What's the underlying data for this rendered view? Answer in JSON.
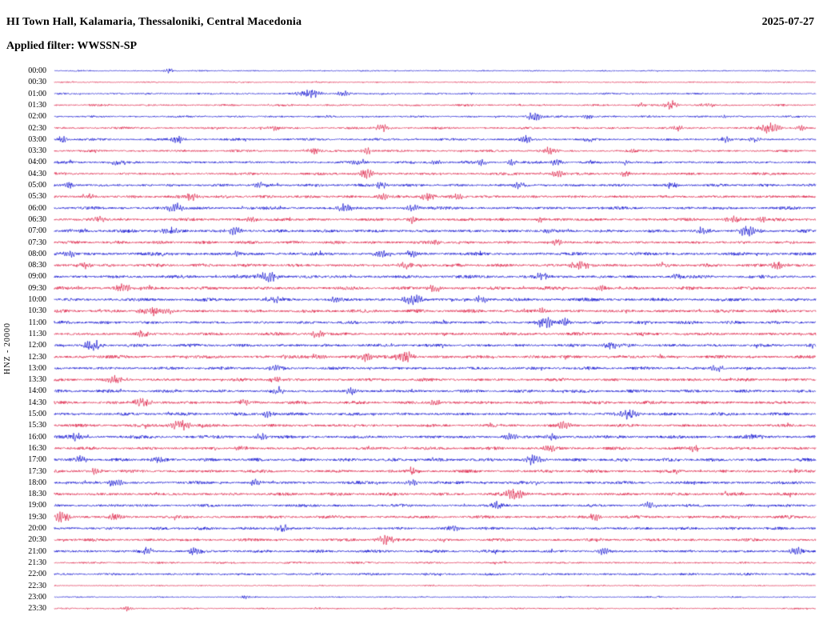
{
  "header": {
    "title": "HI Town Hall, Kalamaria, Thessaloniki, Central Macedonia",
    "date": "2025-07-27",
    "filter": "Applied filter: WWSSN-SP"
  },
  "axis": {
    "left_label": "HNZ - 20000"
  },
  "chart_data": {
    "type": "line",
    "subtype": "helicorder-seismogram",
    "minutes_per_row": 30,
    "rows_count": 48,
    "trace_colors": {
      "blue": "#0000CD",
      "red": "#DC143C"
    },
    "note_events_format": "e = [x_fraction_of_row, relative_amplitude, gaussian_width_fraction]",
    "rows": [
      {
        "t": "00:00",
        "c": "blue",
        "n": 0.6,
        "e": [
          [
            0.15,
            2,
            0.006
          ]
        ]
      },
      {
        "t": "00:30",
        "c": "red",
        "n": 0.6,
        "e": []
      },
      {
        "t": "01:00",
        "c": "blue",
        "n": 0.8,
        "e": [
          [
            0.335,
            3.5,
            0.015
          ],
          [
            0.38,
            2,
            0.01
          ],
          [
            0.55,
            1.5,
            0.005
          ]
        ]
      },
      {
        "t": "01:30",
        "c": "red",
        "n": 0.9,
        "e": [
          [
            0.77,
            1.5,
            0.006
          ],
          [
            0.81,
            4,
            0.008
          ],
          [
            0.86,
            1.5,
            0.01
          ]
        ]
      },
      {
        "t": "02:00",
        "c": "blue",
        "n": 0.9,
        "e": [
          [
            0.63,
            3.5,
            0.01
          ],
          [
            0.7,
            1.5,
            0.008
          ],
          [
            0.88,
            1.5,
            0.006
          ]
        ]
      },
      {
        "t": "02:30",
        "c": "red",
        "n": 1.0,
        "e": [
          [
            0.29,
            2,
            0.008
          ],
          [
            0.43,
            2.5,
            0.01
          ],
          [
            0.82,
            2,
            0.008
          ],
          [
            0.94,
            4.5,
            0.012
          ],
          [
            0.98,
            2,
            0.006
          ]
        ]
      },
      {
        "t": "03:00",
        "c": "blue",
        "n": 1.1,
        "e": [
          [
            0.01,
            2.5,
            0.006
          ],
          [
            0.16,
            3,
            0.01
          ],
          [
            0.62,
            2.5,
            0.008
          ],
          [
            0.7,
            2.5,
            0.006
          ],
          [
            0.88,
            2.5,
            0.008
          ],
          [
            0.92,
            2.5,
            0.006
          ]
        ]
      },
      {
        "t": "03:30",
        "c": "red",
        "n": 1.1,
        "e": [
          [
            0.34,
            2.5,
            0.01
          ],
          [
            0.41,
            2.5,
            0.008
          ],
          [
            0.65,
            2.5,
            0.01
          ],
          [
            0.76,
            1.5,
            0.006
          ]
        ]
      },
      {
        "t": "04:00",
        "c": "blue",
        "n": 1.2,
        "e": [
          [
            0.08,
            2,
            0.008
          ],
          [
            0.4,
            2.5,
            0.01
          ],
          [
            0.5,
            2,
            0.008
          ],
          [
            0.56,
            2.5,
            0.008
          ],
          [
            0.6,
            2.5,
            0.006
          ],
          [
            0.66,
            2.5,
            0.008
          ],
          [
            0.75,
            2,
            0.006
          ]
        ]
      },
      {
        "t": "04:30",
        "c": "red",
        "n": 1.2,
        "e": [
          [
            0.41,
            3.5,
            0.012
          ],
          [
            0.66,
            2.5,
            0.01
          ],
          [
            0.75,
            2,
            0.008
          ]
        ]
      },
      {
        "t": "05:00",
        "c": "blue",
        "n": 1.3,
        "e": [
          [
            0.02,
            2.5,
            0.006
          ],
          [
            0.27,
            2,
            0.008
          ],
          [
            0.43,
            2.5,
            0.008
          ],
          [
            0.61,
            2.5,
            0.008
          ],
          [
            0.81,
            2,
            0.008
          ]
        ]
      },
      {
        "t": "05:30",
        "c": "red",
        "n": 1.4,
        "e": [
          [
            0.18,
            3,
            0.012
          ],
          [
            0.43,
            2.5,
            0.008
          ],
          [
            0.49,
            3,
            0.01
          ],
          [
            0.53,
            2.5,
            0.008
          ]
        ]
      },
      {
        "t": "06:00",
        "c": "blue",
        "n": 1.4,
        "e": [
          [
            0.16,
            3.5,
            0.012
          ],
          [
            0.38,
            3,
            0.01
          ],
          [
            0.47,
            2.5,
            0.01
          ]
        ]
      },
      {
        "t": "06:30",
        "c": "red",
        "n": 1.4,
        "e": [
          [
            0.06,
            2.5,
            0.008
          ],
          [
            0.26,
            2,
            0.008
          ],
          [
            0.47,
            2.5,
            0.008
          ],
          [
            0.64,
            2.5,
            0.006
          ],
          [
            0.89,
            3,
            0.012
          ],
          [
            0.93,
            2,
            0.006
          ]
        ]
      },
      {
        "t": "07:00",
        "c": "blue",
        "n": 1.5,
        "e": [
          [
            0.15,
            3,
            0.01
          ],
          [
            0.24,
            2.5,
            0.012
          ],
          [
            0.65,
            2.5,
            0.008
          ],
          [
            0.85,
            2.5,
            0.008
          ],
          [
            0.91,
            4,
            0.012
          ]
        ]
      },
      {
        "t": "07:30",
        "c": "red",
        "n": 1.4,
        "e": [
          [
            0.5,
            2.5,
            0.008
          ],
          [
            0.66,
            2.5,
            0.008
          ]
        ]
      },
      {
        "t": "08:00",
        "c": "blue",
        "n": 1.5,
        "e": [
          [
            0.02,
            2.5,
            0.008
          ],
          [
            0.24,
            2,
            0.008
          ],
          [
            0.43,
            2.5,
            0.01
          ],
          [
            0.47,
            2.5,
            0.008
          ]
        ]
      },
      {
        "t": "08:30",
        "c": "red",
        "n": 1.5,
        "e": [
          [
            0.04,
            2.5,
            0.008
          ],
          [
            0.46,
            2.5,
            0.008
          ],
          [
            0.69,
            4,
            0.012
          ],
          [
            0.95,
            3,
            0.01
          ]
        ]
      },
      {
        "t": "09:00",
        "c": "blue",
        "n": 1.5,
        "e": [
          [
            0.28,
            4,
            0.014
          ],
          [
            0.64,
            3,
            0.01
          ],
          [
            0.82,
            2.5,
            0.008
          ]
        ]
      },
      {
        "t": "09:30",
        "c": "red",
        "n": 1.5,
        "e": [
          [
            0.09,
            3,
            0.012
          ],
          [
            0.5,
            2.5,
            0.01
          ],
          [
            0.72,
            2.5,
            0.008
          ]
        ]
      },
      {
        "t": "10:00",
        "c": "blue",
        "n": 1.5,
        "e": [
          [
            0.29,
            2.5,
            0.008
          ],
          [
            0.37,
            2.5,
            0.008
          ],
          [
            0.47,
            4,
            0.012
          ],
          [
            0.56,
            2.5,
            0.008
          ]
        ]
      },
      {
        "t": "10:30",
        "c": "red",
        "n": 1.5,
        "e": [
          [
            0.13,
            3,
            0.02
          ],
          [
            0.64,
            2.5,
            0.008
          ]
        ]
      },
      {
        "t": "11:00",
        "c": "blue",
        "n": 1.4,
        "e": [
          [
            0.645,
            4.5,
            0.012
          ],
          [
            0.67,
            3,
            0.008
          ]
        ]
      },
      {
        "t": "11:30",
        "c": "red",
        "n": 1.4,
        "e": [
          [
            0.115,
            2.5,
            0.008
          ],
          [
            0.345,
            2.5,
            0.01
          ]
        ]
      },
      {
        "t": "12:00",
        "c": "blue",
        "n": 1.4,
        "e": [
          [
            0.05,
            4,
            0.012
          ],
          [
            0.73,
            3,
            0.01
          ]
        ]
      },
      {
        "t": "12:30",
        "c": "red",
        "n": 1.5,
        "e": [
          [
            0.345,
            2.5,
            0.01
          ],
          [
            0.41,
            3,
            0.01
          ],
          [
            0.46,
            4,
            0.012
          ]
        ]
      },
      {
        "t": "13:00",
        "c": "blue",
        "n": 1.4,
        "e": [
          [
            0.29,
            2.5,
            0.01
          ],
          [
            0.87,
            2.5,
            0.008
          ]
        ]
      },
      {
        "t": "13:30",
        "c": "red",
        "n": 1.4,
        "e": [
          [
            0.08,
            3,
            0.01
          ],
          [
            0.29,
            2.5,
            0.008
          ]
        ]
      },
      {
        "t": "14:00",
        "c": "blue",
        "n": 1.4,
        "e": [
          [
            0.295,
            2.5,
            0.008
          ],
          [
            0.39,
            2.5,
            0.008
          ]
        ]
      },
      {
        "t": "14:30",
        "c": "red",
        "n": 1.5,
        "e": [
          [
            0.115,
            3.5,
            0.012
          ],
          [
            0.25,
            2.5,
            0.008
          ],
          [
            0.5,
            2.5,
            0.008
          ]
        ]
      },
      {
        "t": "15:00",
        "c": "blue",
        "n": 1.4,
        "e": [
          [
            0.28,
            2.5,
            0.008
          ],
          [
            0.755,
            4,
            0.012
          ]
        ]
      },
      {
        "t": "15:30",
        "c": "red",
        "n": 1.4,
        "e": [
          [
            0.165,
            4,
            0.012
          ],
          [
            0.67,
            2.5,
            0.008
          ]
        ]
      },
      {
        "t": "16:00",
        "c": "blue",
        "n": 1.5,
        "e": [
          [
            0.03,
            2.5,
            0.008
          ],
          [
            0.27,
            2.5,
            0.008
          ],
          [
            0.6,
            2.5,
            0.008
          ],
          [
            0.655,
            2.5,
            0.008
          ],
          [
            0.92,
            2.5,
            0.008
          ]
        ]
      },
      {
        "t": "16:30",
        "c": "red",
        "n": 1.4,
        "e": [
          [
            0.245,
            2.5,
            0.008
          ],
          [
            0.65,
            2.5,
            0.008
          ],
          [
            0.84,
            2.5,
            0.008
          ]
        ]
      },
      {
        "t": "17:00",
        "c": "blue",
        "n": 1.5,
        "e": [
          [
            0.035,
            2.5,
            0.008
          ],
          [
            0.135,
            2.5,
            0.008
          ],
          [
            0.63,
            3.5,
            0.012
          ]
        ]
      },
      {
        "t": "17:30",
        "c": "red",
        "n": 1.4,
        "e": [
          [
            0.055,
            2.5,
            0.008
          ],
          [
            0.47,
            2.5,
            0.008
          ]
        ]
      },
      {
        "t": "18:00",
        "c": "blue",
        "n": 1.4,
        "e": [
          [
            0.08,
            3,
            0.01
          ],
          [
            0.265,
            2.5,
            0.008
          ],
          [
            0.47,
            2.5,
            0.008
          ]
        ]
      },
      {
        "t": "18:30",
        "c": "red",
        "n": 1.4,
        "e": [
          [
            0.605,
            4,
            0.014
          ]
        ]
      },
      {
        "t": "19:00",
        "c": "blue",
        "n": 1.3,
        "e": [
          [
            0.58,
            2.5,
            0.008
          ],
          [
            0.78,
            2.5,
            0.008
          ]
        ]
      },
      {
        "t": "19:30",
        "c": "red",
        "n": 1.4,
        "e": [
          [
            0.01,
            4,
            0.012
          ],
          [
            0.08,
            2.5,
            0.008
          ],
          [
            0.71,
            2.5,
            0.008
          ]
        ]
      },
      {
        "t": "20:00",
        "c": "blue",
        "n": 1.3,
        "e": [
          [
            0.3,
            2.8,
            0.01
          ],
          [
            0.525,
            2.5,
            0.008
          ]
        ]
      },
      {
        "t": "20:30",
        "c": "red",
        "n": 1.3,
        "e": [
          [
            0.435,
            3.5,
            0.012
          ]
        ]
      },
      {
        "t": "21:00",
        "c": "blue",
        "n": 1.3,
        "e": [
          [
            0.12,
            3,
            0.01
          ],
          [
            0.185,
            2.8,
            0.008
          ],
          [
            0.72,
            2.5,
            0.008
          ],
          [
            0.975,
            3.5,
            0.01
          ]
        ]
      },
      {
        "t": "21:30",
        "c": "red",
        "n": 0.9,
        "e": []
      },
      {
        "t": "22:00",
        "c": "blue",
        "n": 1.1,
        "e": []
      },
      {
        "t": "22:30",
        "c": "red",
        "n": 0.55,
        "e": []
      },
      {
        "t": "23:00",
        "c": "blue",
        "n": 0.6,
        "e": [
          [
            0.25,
            1.2,
            0.006
          ]
        ]
      },
      {
        "t": "23:30",
        "c": "red",
        "n": 0.65,
        "e": [
          [
            0.095,
            2,
            0.008
          ]
        ]
      }
    ]
  }
}
